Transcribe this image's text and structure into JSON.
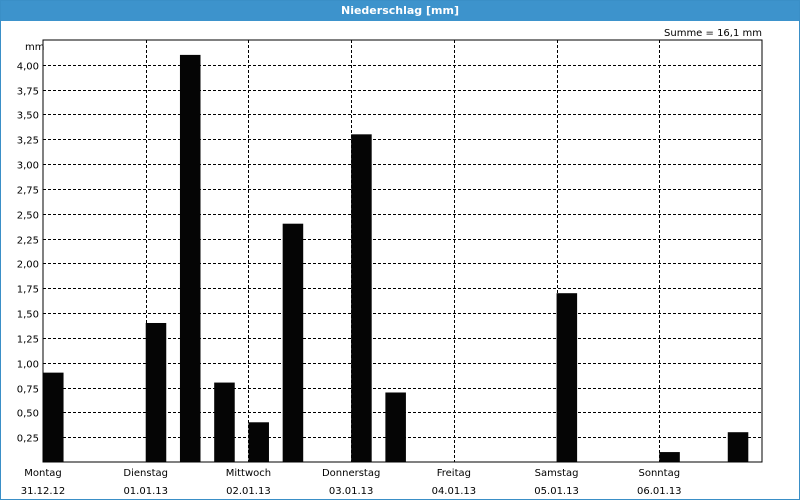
{
  "window": {
    "title": "Niederschlag [mm]"
  },
  "summary": {
    "total_label": "Summe = 16,1 mm"
  },
  "chart_data": {
    "type": "bar",
    "title": "Niederschlag [mm]",
    "ylabel": "mm",
    "ylim": [
      0,
      4.25
    ],
    "grid": true,
    "y_ticks": [
      "0,25",
      "0,50",
      "0,75",
      "1,00",
      "1,25",
      "1,50",
      "1,75",
      "2,00",
      "2,25",
      "2,50",
      "2,75",
      "3,00",
      "3,25",
      "3,50",
      "3,75",
      "4,00"
    ],
    "day_labels": [
      {
        "day": "Montag",
        "date": "31.12.12"
      },
      {
        "day": "Dienstag",
        "date": "01.01.13"
      },
      {
        "day": "Mittwoch",
        "date": "02.01.13"
      },
      {
        "day": "Donnerstag",
        "date": "03.01.13"
      },
      {
        "day": "Freitag",
        "date": "04.01.13"
      },
      {
        "day": "Samstag",
        "date": "05.01.13"
      },
      {
        "day": "Sonntag",
        "date": "06.01.13"
      }
    ],
    "bins_per_day": 3,
    "values": [
      0.9,
      0,
      0,
      1.4,
      4.1,
      0.8,
      0.4,
      2.4,
      0,
      3.3,
      0.7,
      0,
      0,
      0,
      0,
      1.7,
      0,
      0,
      0.1,
      0,
      0.3
    ],
    "summary": "Summe = 16,1 mm"
  }
}
